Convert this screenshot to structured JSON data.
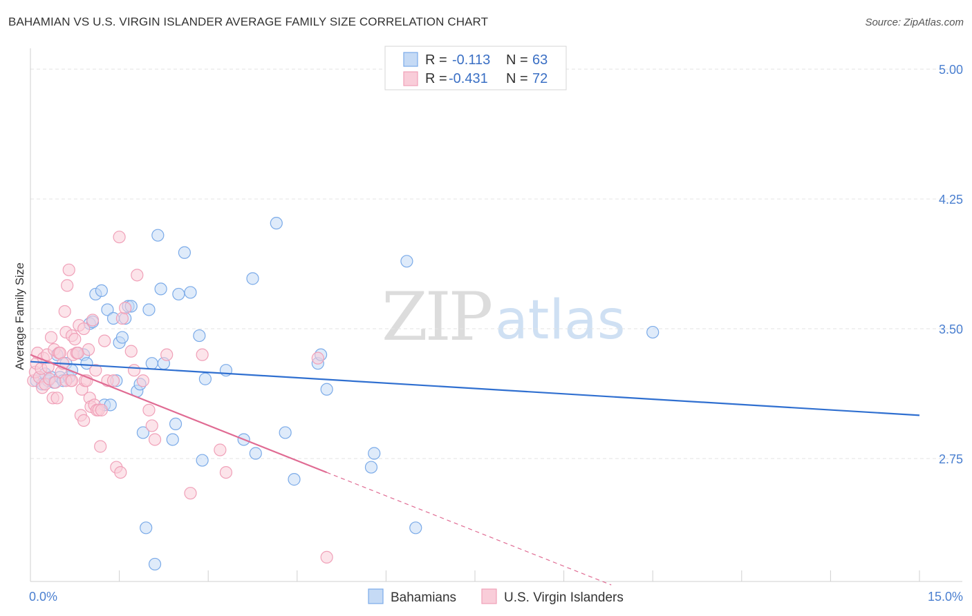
{
  "title": "BAHAMIAN VS U.S. VIRGIN ISLANDER AVERAGE FAMILY SIZE CORRELATION CHART",
  "source": "Source: ZipAtlas.com",
  "watermark": {
    "zip": "ZIP",
    "atlas": "atlas"
  },
  "chart_data": {
    "type": "scatter",
    "xlabel": "",
    "ylabel": "Average Family Size",
    "xlim": [
      0,
      15
    ],
    "ylim": [
      2.04,
      5.12
    ],
    "x_tick_labels": [
      "0.0%",
      "15.0%"
    ],
    "y_ticks": [
      2.75,
      3.5,
      4.25,
      5.0
    ],
    "y_tick_labels": [
      "2.75",
      "3.50",
      "4.25",
      "5.00"
    ],
    "legend": [
      {
        "r_label": "R =",
        "r": "-0.113",
        "n_label": "N =",
        "n": "63"
      },
      {
        "r_label": "R =",
        "r": "-0.431",
        "n_label": "N =",
        "n": "72"
      }
    ],
    "series": [
      {
        "name": "Bahamians",
        "color": "#7aaae8",
        "fill": "#c5daf5",
        "trend": {
          "x0": 0,
          "y0": 3.31,
          "x1": 15,
          "y1": 3.0,
          "color": "#2f6fd0"
        },
        "points": [
          [
            0.1,
            3.2
          ],
          [
            0.15,
            3.22
          ],
          [
            0.2,
            3.18
          ],
          [
            0.25,
            3.24
          ],
          [
            0.3,
            3.2
          ],
          [
            0.35,
            3.22
          ],
          [
            0.4,
            3.19
          ],
          [
            0.45,
            3.35
          ],
          [
            0.5,
            3.22
          ],
          [
            0.55,
            3.2
          ],
          [
            0.6,
            3.3
          ],
          [
            0.65,
            3.22
          ],
          [
            0.7,
            3.26
          ],
          [
            0.8,
            3.36
          ],
          [
            0.9,
            3.35
          ],
          [
            0.95,
            3.3
          ],
          [
            1.0,
            3.53
          ],
          [
            1.05,
            3.54
          ],
          [
            1.1,
            3.7
          ],
          [
            1.2,
            3.72
          ],
          [
            1.25,
            3.06
          ],
          [
            1.3,
            3.61
          ],
          [
            1.35,
            3.06
          ],
          [
            1.4,
            3.56
          ],
          [
            1.45,
            3.2
          ],
          [
            1.5,
            3.42
          ],
          [
            1.55,
            3.45
          ],
          [
            1.6,
            3.56
          ],
          [
            1.65,
            3.63
          ],
          [
            1.7,
            3.63
          ],
          [
            1.8,
            3.14
          ],
          [
            1.85,
            3.18
          ],
          [
            1.9,
            2.9
          ],
          [
            1.95,
            2.35
          ],
          [
            2.0,
            3.61
          ],
          [
            2.05,
            3.3
          ],
          [
            2.1,
            2.14
          ],
          [
            2.15,
            4.04
          ],
          [
            2.2,
            3.73
          ],
          [
            2.25,
            3.3
          ],
          [
            2.4,
            2.86
          ],
          [
            2.45,
            2.95
          ],
          [
            2.5,
            3.7
          ],
          [
            2.6,
            3.94
          ],
          [
            2.7,
            3.71
          ],
          [
            2.85,
            3.46
          ],
          [
            2.9,
            2.74
          ],
          [
            2.95,
            3.21
          ],
          [
            3.3,
            3.26
          ],
          [
            3.6,
            2.86
          ],
          [
            3.75,
            3.79
          ],
          [
            3.8,
            2.78
          ],
          [
            4.15,
            4.11
          ],
          [
            4.3,
            2.9
          ],
          [
            4.45,
            2.63
          ],
          [
            4.85,
            3.3
          ],
          [
            4.9,
            3.35
          ],
          [
            5.0,
            3.15
          ],
          [
            5.75,
            2.7
          ],
          [
            5.8,
            2.78
          ],
          [
            6.35,
            3.89
          ],
          [
            6.5,
            2.35
          ],
          [
            10.5,
            3.48
          ]
        ]
      },
      {
        "name": "U.S. Virgin Islanders",
        "color": "#f0a0b8",
        "fill": "#f9cdd9",
        "trend": {
          "x0": 0,
          "y0": 3.35,
          "x1": 5.0,
          "y1": 2.67,
          "dash_x1": 9.8,
          "dash_y1": 2.02,
          "color": "#e06b93"
        },
        "points": [
          [
            0.05,
            3.2
          ],
          [
            0.08,
            3.25
          ],
          [
            0.1,
            3.3
          ],
          [
            0.12,
            3.36
          ],
          [
            0.15,
            3.22
          ],
          [
            0.18,
            3.27
          ],
          [
            0.2,
            3.16
          ],
          [
            0.22,
            3.33
          ],
          [
            0.25,
            3.18
          ],
          [
            0.28,
            3.35
          ],
          [
            0.3,
            3.28
          ],
          [
            0.32,
            3.21
          ],
          [
            0.35,
            3.45
          ],
          [
            0.38,
            3.1
          ],
          [
            0.4,
            3.38
          ],
          [
            0.42,
            3.19
          ],
          [
            0.45,
            3.1
          ],
          [
            0.48,
            3.36
          ],
          [
            0.5,
            3.36
          ],
          [
            0.52,
            3.25
          ],
          [
            0.55,
            3.3
          ],
          [
            0.58,
            3.6
          ],
          [
            0.6,
            3.48
          ],
          [
            0.62,
            3.75
          ],
          [
            0.65,
            3.84
          ],
          [
            0.68,
            3.2
          ],
          [
            0.7,
            3.46
          ],
          [
            0.72,
            3.35
          ],
          [
            0.75,
            3.44
          ],
          [
            0.78,
            3.36
          ],
          [
            0.8,
            3.36
          ],
          [
            0.82,
            3.52
          ],
          [
            0.85,
            3.0
          ],
          [
            0.87,
            3.15
          ],
          [
            0.9,
            2.97
          ],
          [
            0.92,
            3.2
          ],
          [
            0.95,
            3.2
          ],
          [
            0.98,
            3.38
          ],
          [
            1.0,
            3.1
          ],
          [
            1.02,
            3.05
          ],
          [
            1.05,
            3.55
          ],
          [
            1.08,
            3.06
          ],
          [
            1.1,
            3.26
          ],
          [
            1.12,
            3.03
          ],
          [
            1.15,
            3.03
          ],
          [
            1.18,
            2.82
          ],
          [
            1.2,
            3.03
          ],
          [
            1.25,
            3.43
          ],
          [
            1.3,
            3.2
          ],
          [
            1.4,
            3.2
          ],
          [
            1.45,
            2.7
          ],
          [
            1.5,
            4.03
          ],
          [
            1.52,
            2.67
          ],
          [
            1.55,
            3.56
          ],
          [
            1.6,
            3.62
          ],
          [
            1.7,
            3.37
          ],
          [
            1.75,
            3.26
          ],
          [
            1.8,
            3.81
          ],
          [
            1.9,
            3.2
          ],
          [
            2.0,
            3.03
          ],
          [
            2.05,
            2.94
          ],
          [
            2.1,
            2.86
          ],
          [
            2.3,
            3.35
          ],
          [
            2.7,
            2.55
          ],
          [
            2.9,
            3.35
          ],
          [
            3.2,
            2.8
          ],
          [
            3.3,
            2.67
          ],
          [
            4.85,
            3.33
          ],
          [
            5.0,
            2.18
          ],
          [
            0.6,
            3.2
          ],
          [
            0.7,
            3.2
          ],
          [
            0.9,
            3.5
          ]
        ]
      }
    ]
  }
}
